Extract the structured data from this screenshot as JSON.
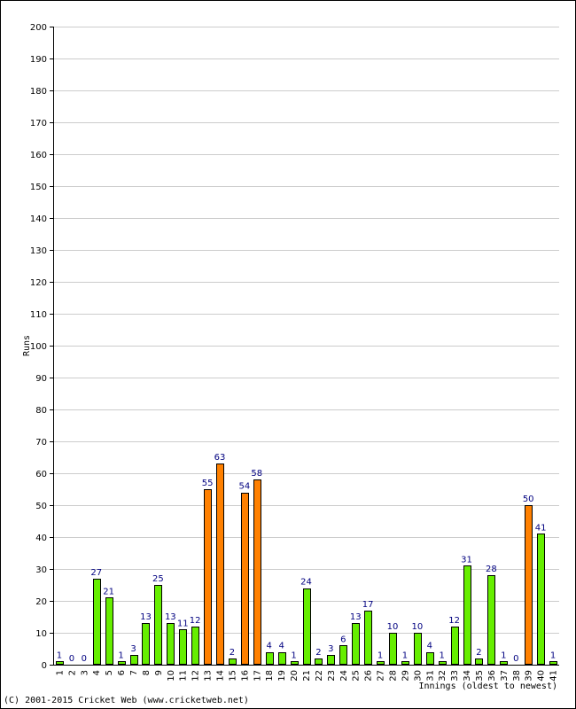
{
  "chart_data": {
    "type": "bar",
    "title": "",
    "xlabel": "Innings (oldest to newest)",
    "ylabel": "Runs",
    "ylim": [
      0,
      200
    ],
    "yticks": [
      0,
      10,
      20,
      30,
      40,
      50,
      60,
      70,
      80,
      90,
      100,
      110,
      120,
      130,
      140,
      150,
      160,
      170,
      180,
      190,
      200
    ],
    "grid": true,
    "categories": [
      "1",
      "2",
      "3",
      "4",
      "5",
      "6",
      "7",
      "8",
      "9",
      "10",
      "11",
      "12",
      "13",
      "14",
      "15",
      "16",
      "17",
      "18",
      "19",
      "20",
      "21",
      "22",
      "23",
      "24",
      "25",
      "26",
      "27",
      "28",
      "29",
      "30",
      "31",
      "32",
      "33",
      "34",
      "35",
      "36",
      "37",
      "38",
      "39",
      "40",
      "41"
    ],
    "values": [
      1,
      0,
      0,
      27,
      21,
      1,
      3,
      13,
      25,
      13,
      11,
      12,
      55,
      63,
      2,
      54,
      58,
      4,
      4,
      1,
      24,
      2,
      3,
      6,
      13,
      17,
      1,
      10,
      1,
      10,
      4,
      1,
      12,
      31,
      2,
      28,
      1,
      0,
      50,
      41,
      1
    ],
    "colors": {
      "normal": "#66ee00",
      "fifty": "#ff8000",
      "border": "#000000",
      "label": "#000080",
      "grid": "#cccccc"
    }
  },
  "footer": {
    "copyright": "(C) 2001-2015 Cricket Web (www.cricketweb.net)"
  }
}
